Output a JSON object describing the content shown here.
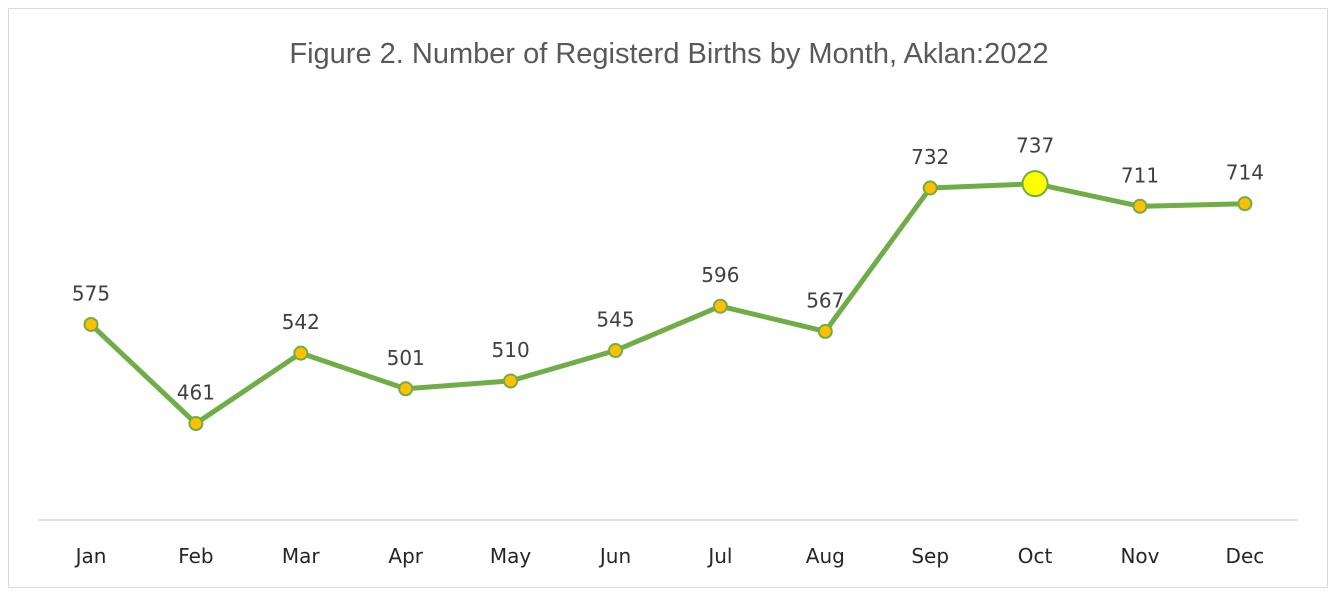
{
  "chart_data": {
    "type": "line",
    "title": "Figure 2. Number of Registerd Births by Month, Aklan:2022",
    "categories": [
      "Jan",
      "Feb",
      "Mar",
      "Apr",
      "May",
      "Jun",
      "Jul",
      "Aug",
      "Sep",
      "Oct",
      "Nov",
      "Dec"
    ],
    "values": [
      575,
      461,
      542,
      501,
      510,
      545,
      596,
      567,
      732,
      737,
      711,
      714
    ],
    "data_labels": [
      "575",
      "461",
      "542",
      "501",
      "510",
      "545",
      "596",
      "567",
      "732",
      "737",
      "711",
      "714"
    ],
    "highlight": {
      "category": "Oct",
      "value": 737,
      "color": "#ffff00"
    },
    "ylim": [
      350,
      900
    ],
    "grid": false,
    "legend": "none",
    "colors": {
      "line": "#70ad47",
      "marker_fill": "#ffc000",
      "marker_stroke": "#70ad47",
      "axis": "#d9d9d9"
    }
  }
}
